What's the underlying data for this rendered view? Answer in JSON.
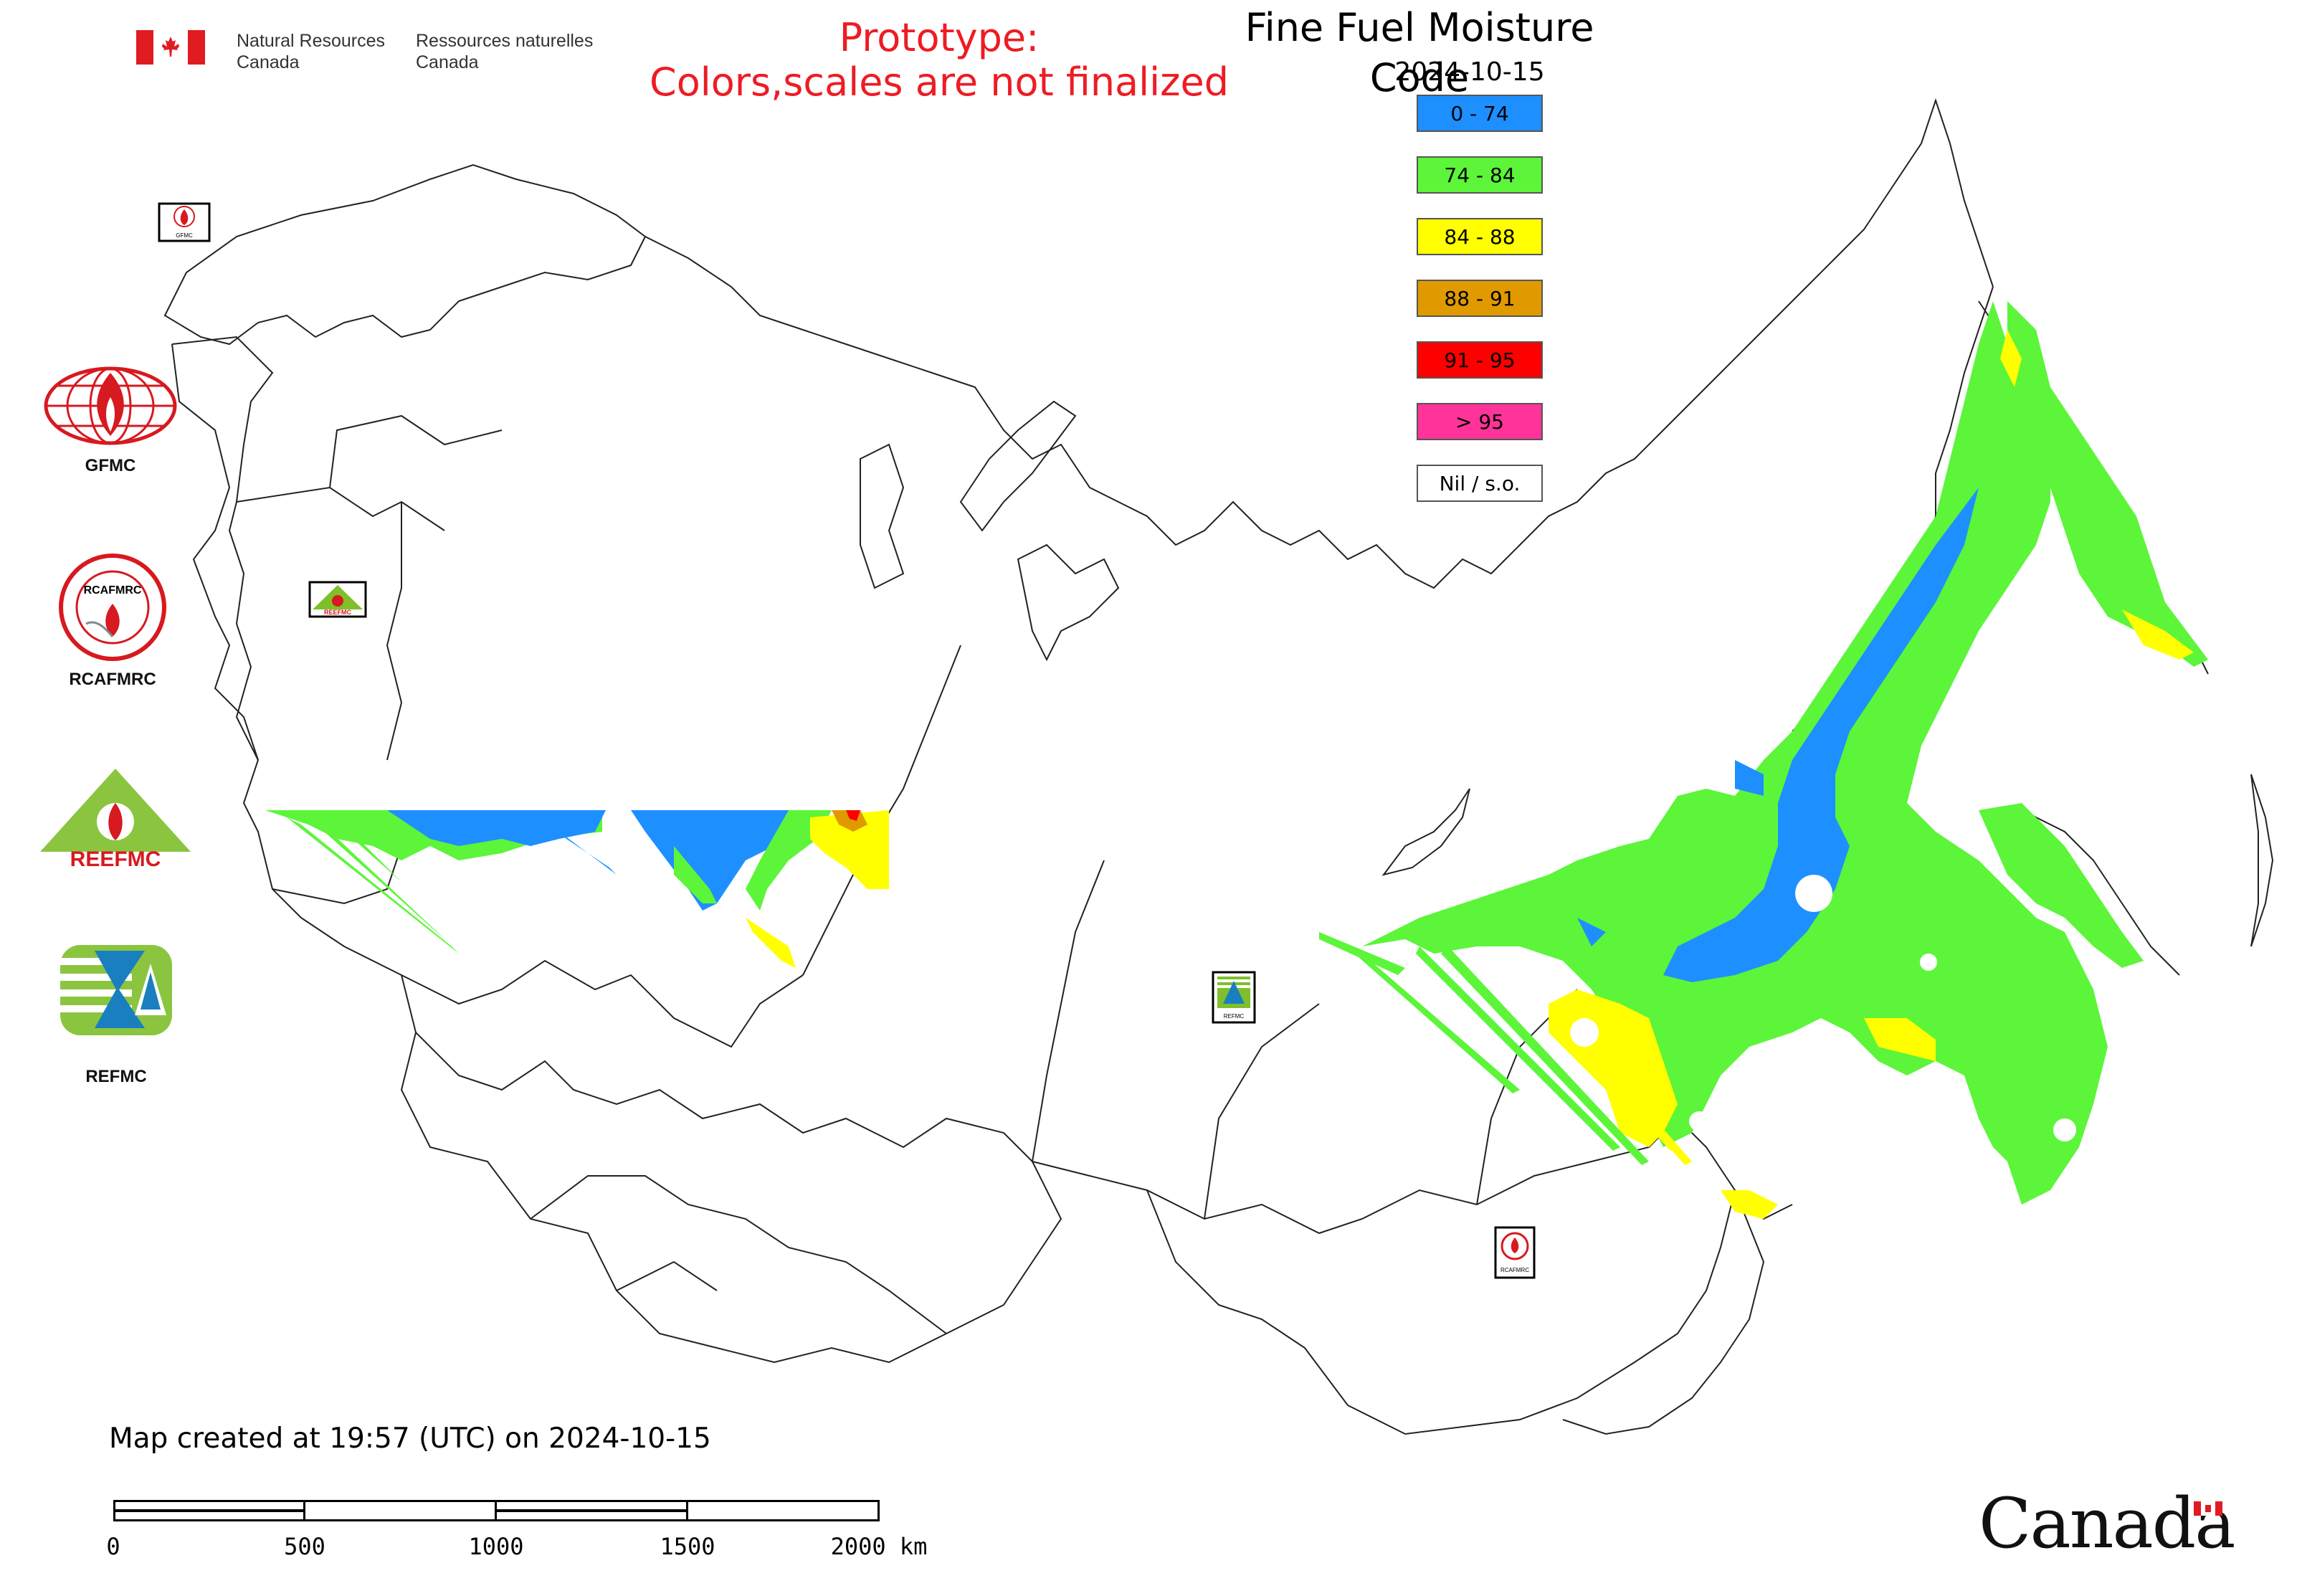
{
  "header": {
    "agency_en": "Natural Resources\nCanada",
    "agency_en_line1": "Natural Resources",
    "agency_en_line2": "Canada",
    "agency_fr_line1": "Ressources naturelles",
    "agency_fr_line2": "Canada",
    "prototype_line1": "Prototype:",
    "prototype_line2": "Colors,scales are not finalized",
    "title": "Fine Fuel Moisture Code",
    "date": "2024-10-15"
  },
  "legend": [
    {
      "label": "0 - 74",
      "color": "#1e8fff"
    },
    {
      "label": "74 - 84",
      "color": "#5cf53a"
    },
    {
      "label": "84 - 88",
      "color": "#ffff00"
    },
    {
      "label": "88 - 91",
      "color": "#e09a00"
    },
    {
      "label": "91 - 95",
      "color": "#ff0000"
    },
    {
      "label": "> 95",
      "color": "#ff3399"
    },
    {
      "label": "Nil / s.o.",
      "color": "#ffffff"
    }
  ],
  "logos": {
    "gfmc": "GFMC",
    "rcafmrc": "RCAFMRC",
    "reefmc": "REEFMC",
    "refmc": "REFMC",
    "map_marker_gfmc": "GFMC",
    "map_marker_reefmc": "REEFMC",
    "map_marker_refmc": "REFMC",
    "map_marker_rcafmrc": "RCAFMRC"
  },
  "footer": {
    "created_note": "Map created at 19:57 (UTC) on 2024-10-15",
    "scale_labels": [
      "0",
      "500",
      "1000",
      "1500",
      "2000 km"
    ],
    "wordmark": "Canada"
  },
  "colors": {
    "low": "#1e8fff",
    "moderate": "#5cf53a",
    "high": "#ffff00",
    "very_high": "#e09a00",
    "extreme": "#ff0000",
    "prototype_text": "#ed1c24",
    "flag_red": "#e11b22"
  }
}
